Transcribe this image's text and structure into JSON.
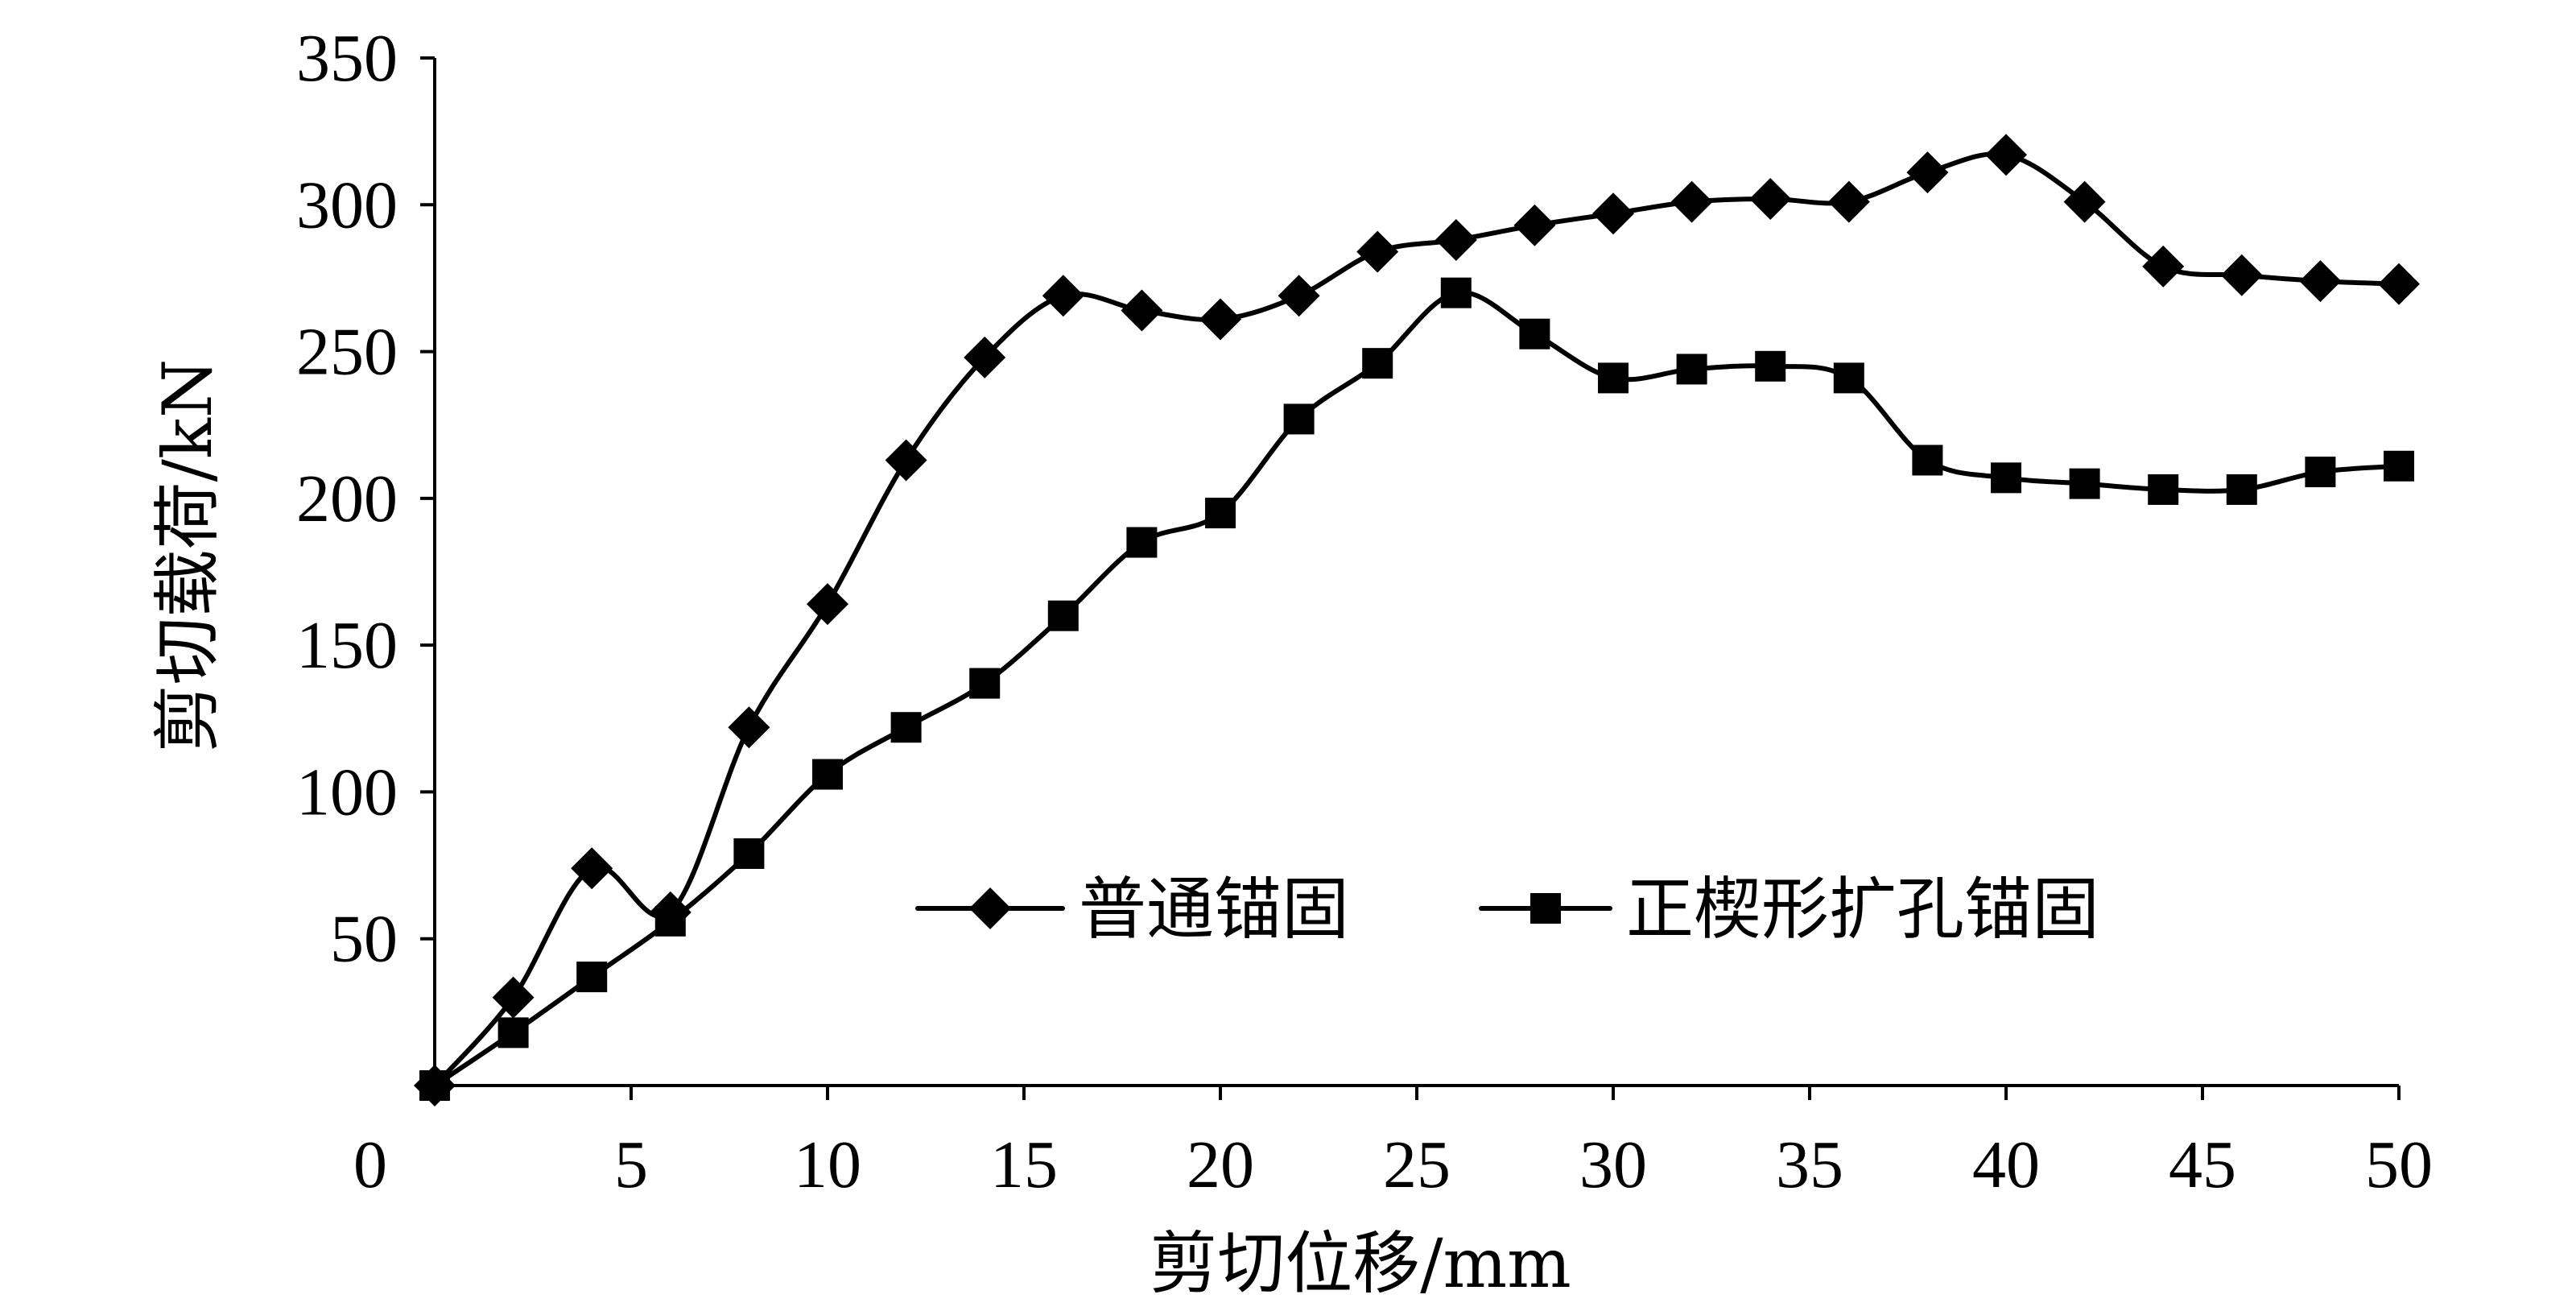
{
  "chart_data": {
    "type": "line",
    "xlabel": "剪切位移/mm",
    "ylabel": "剪切载荷/kN",
    "xlim": [
      0,
      50
    ],
    "ylim": [
      0,
      350
    ],
    "x_ticks": [
      0,
      5,
      10,
      15,
      20,
      25,
      30,
      35,
      40,
      45,
      50
    ],
    "y_ticks": [
      50,
      100,
      150,
      200,
      250,
      300,
      350
    ],
    "grid": false,
    "legend_position": "center-right",
    "series": [
      {
        "name": "普通锚固",
        "marker": "diamond",
        "color": "#000000",
        "points": [
          [
            0,
            0
          ],
          [
            2,
            30
          ],
          [
            4,
            74
          ],
          [
            6,
            59
          ],
          [
            8,
            122
          ],
          [
            10,
            164
          ],
          [
            12,
            213
          ],
          [
            14,
            248
          ],
          [
            16,
            269
          ],
          [
            18,
            264
          ],
          [
            20,
            261
          ],
          [
            22,
            269
          ],
          [
            24,
            284
          ],
          [
            26,
            288
          ],
          [
            28,
            293
          ],
          [
            30,
            297
          ],
          [
            32,
            301
          ],
          [
            34,
            302
          ],
          [
            36,
            301
          ],
          [
            38,
            311
          ],
          [
            40,
            317
          ],
          [
            42,
            301
          ],
          [
            44,
            279
          ],
          [
            46,
            276
          ],
          [
            48,
            274
          ],
          [
            50,
            273
          ]
        ]
      },
      {
        "name": "正楔形扩孔锚固",
        "marker": "square",
        "color": "#000000",
        "points": [
          [
            0,
            0
          ],
          [
            2,
            18
          ],
          [
            4,
            37
          ],
          [
            6,
            56
          ],
          [
            8,
            79
          ],
          [
            10,
            106
          ],
          [
            12,
            122
          ],
          [
            14,
            137
          ],
          [
            16,
            160
          ],
          [
            18,
            185
          ],
          [
            20,
            195
          ],
          [
            22,
            227
          ],
          [
            24,
            246
          ],
          [
            26,
            270
          ],
          [
            28,
            256
          ],
          [
            30,
            241
          ],
          [
            32,
            244
          ],
          [
            34,
            245
          ],
          [
            36,
            241
          ],
          [
            38,
            213
          ],
          [
            40,
            207
          ],
          [
            42,
            205
          ],
          [
            44,
            203
          ],
          [
            46,
            203
          ],
          [
            48,
            209
          ],
          [
            50,
            211
          ]
        ]
      }
    ]
  }
}
